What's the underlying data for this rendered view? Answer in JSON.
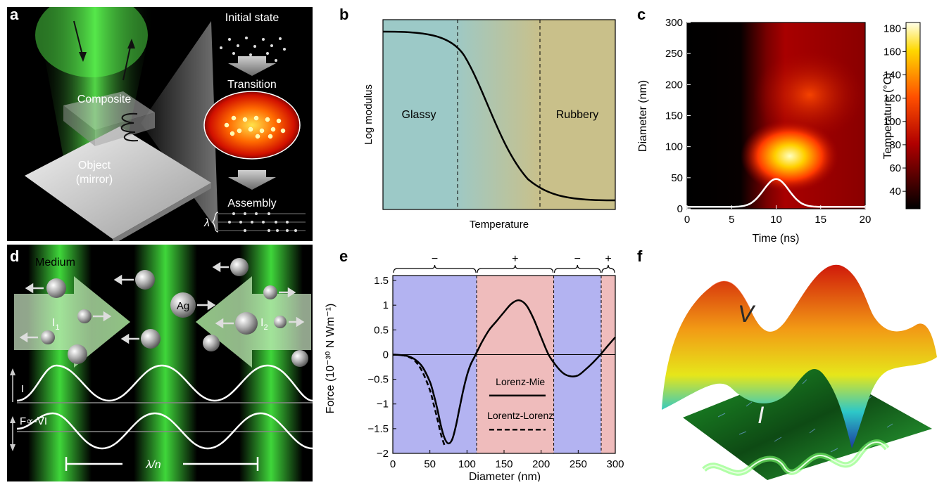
{
  "panels": {
    "a": {
      "label": "a",
      "initial_state": "Initial state",
      "transition": "Transition",
      "assembly": "Assembly",
      "composite": "Composite",
      "object_line1": "Object",
      "object_line2": "(mirror)",
      "lambda": "λ"
    },
    "b": {
      "label": "b",
      "ylabel": "Log modulus",
      "xlabel": "Temperature",
      "region_left": "Glassy",
      "region_right": "Rubbery",
      "colors": {
        "glassy": "#9cc9c7",
        "rubbery": "#c9c08a"
      }
    },
    "c": {
      "label": "c"
    },
    "d": {
      "label": "d",
      "medium": "Medium",
      "ag": "Ag",
      "i1": "I",
      "i1_sub": "1",
      "i2": "I",
      "i2_sub": "2",
      "intensity": "I",
      "force_law": "F∝-∇I",
      "wavelength_prefix": "λ",
      "wavelength_suffix": "/n"
    },
    "e": {
      "label": "e"
    },
    "f": {
      "label": "f",
      "v_label": "V",
      "i_label": "I"
    }
  },
  "chart_data": [
    {
      "id": "c",
      "type": "heatmap",
      "xlabel": "Time (ns)",
      "ylabel": "Diameter (nm)",
      "colorbar_label": "Temperature (°C)",
      "xlim": [
        0,
        20
      ],
      "ylim": [
        0,
        300
      ],
      "xticks": [
        0,
        5,
        10,
        15,
        20
      ],
      "yticks": [
        0,
        50,
        100,
        150,
        200,
        250,
        300
      ],
      "colorbar_ticks": [
        40,
        60,
        80,
        100,
        120,
        140,
        160,
        180
      ],
      "colorbar_range": [
        25,
        185
      ],
      "pulse": {
        "center_ns": 10,
        "peak_nm": 48,
        "baseline_nm": 3
      }
    },
    {
      "id": "e",
      "type": "line",
      "xlabel": "Diameter (nm)",
      "ylabel": "Force (10⁻³⁰ N Wm⁻¹)",
      "xlim": [
        0,
        300
      ],
      "ylim": [
        -2.0,
        1.6
      ],
      "xticks": [
        0,
        50,
        100,
        150,
        200,
        250,
        300
      ],
      "yticks": [
        -2.0,
        -1.5,
        -1.0,
        -0.5,
        0,
        0.5,
        1.0,
        1.5
      ],
      "regions": [
        {
          "sign": "−",
          "from": 0,
          "to": 113,
          "color": "#b3b3f1"
        },
        {
          "sign": "+",
          "from": 113,
          "to": 217,
          "color": "#efbcbc"
        },
        {
          "sign": "−",
          "from": 217,
          "to": 281,
          "color": "#b3b3f1"
        },
        {
          "sign": "+",
          "from": 281,
          "to": 300,
          "color": "#efbcbc"
        }
      ],
      "series": [
        {
          "name": "Lorenz-Mie",
          "style": "solid",
          "x": [
            0,
            10,
            20,
            30,
            40,
            50,
            55,
            60,
            65,
            70,
            75,
            80,
            85,
            90,
            95,
            100,
            105,
            110,
            115,
            120,
            130,
            140,
            150,
            160,
            170,
            180,
            190,
            200,
            210,
            220,
            230,
            240,
            250,
            260,
            270,
            280,
            290,
            300
          ],
          "y": [
            0,
            -0.01,
            -0.03,
            -0.1,
            -0.25,
            -0.55,
            -0.8,
            -1.1,
            -1.45,
            -1.7,
            -1.8,
            -1.72,
            -1.45,
            -1.08,
            -0.72,
            -0.42,
            -0.2,
            -0.05,
            0.1,
            0.25,
            0.5,
            0.68,
            0.86,
            1.03,
            1.1,
            1.0,
            0.72,
            0.35,
            0.0,
            -0.22,
            -0.38,
            -0.44,
            -0.42,
            -0.3,
            -0.16,
            0.0,
            0.18,
            0.35
          ]
        },
        {
          "name": "Lorentz-Lorenz",
          "style": "dashed",
          "x": [
            0,
            10,
            20,
            30,
            40,
            50,
            55,
            60,
            65,
            70
          ],
          "y": [
            0,
            -0.01,
            -0.04,
            -0.13,
            -0.35,
            -0.72,
            -1.0,
            -1.3,
            -1.62,
            -1.85
          ]
        }
      ]
    }
  ]
}
